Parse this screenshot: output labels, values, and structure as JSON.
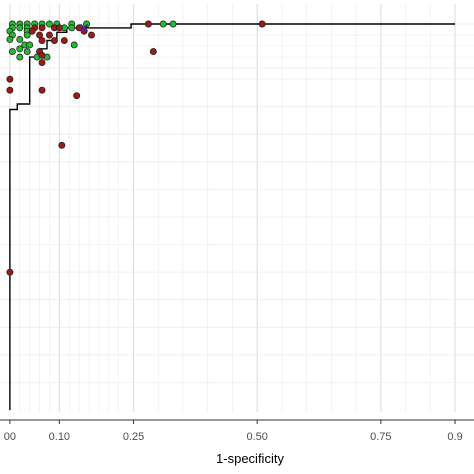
{
  "chart_data": {
    "type": "scatter",
    "xlabel": "1-specificity",
    "ylabel": "",
    "xlim": [
      0,
      0.9
    ],
    "ylim": [
      0.3,
      1.0
    ],
    "x_tick_labels": [
      "00",
      "0.10",
      "0.25",
      "0.50",
      "0.75",
      "0.9"
    ],
    "x_ticks": [
      0,
      0.1,
      0.25,
      0.5,
      0.75,
      0.9
    ],
    "x_minor_grid": [
      0.02,
      0.04,
      0.06,
      0.08,
      0.12,
      0.14,
      0.16,
      0.18,
      0.2,
      0.22,
      0.3,
      0.35,
      0.4,
      0.45,
      0.55,
      0.6,
      0.65,
      0.7,
      0.8,
      0.85
    ],
    "y_grid": [
      0.35,
      0.4,
      0.45,
      0.5,
      0.55,
      0.6,
      0.65,
      0.7,
      0.75,
      0.8,
      0.85,
      0.9,
      0.92,
      0.94,
      0.96,
      0.98,
      1.0
    ],
    "grid": true,
    "legend": "none",
    "colors": {
      "green": "#22bb33",
      "red": "#9b1b16",
      "star": "#4a2aa0",
      "curve": "#000000",
      "grid": "#ebebeb"
    },
    "roc_curve": [
      [
        0.0,
        0.3
      ],
      [
        0.0,
        0.845
      ],
      [
        0.015,
        0.845
      ],
      [
        0.015,
        0.855
      ],
      [
        0.04,
        0.855
      ],
      [
        0.04,
        0.94
      ],
      [
        0.06,
        0.94
      ],
      [
        0.06,
        0.955
      ],
      [
        0.075,
        0.955
      ],
      [
        0.075,
        0.97
      ],
      [
        0.095,
        0.97
      ],
      [
        0.095,
        0.985
      ],
      [
        0.115,
        0.985
      ],
      [
        0.115,
        0.993
      ],
      [
        0.245,
        0.993
      ],
      [
        0.245,
        1.0
      ],
      [
        0.9,
        1.0
      ]
    ],
    "series": [
      {
        "color": "green",
        "points": [
          [
            0.005,
            1.0
          ],
          [
            0.02,
            1.0
          ],
          [
            0.035,
            1.0
          ],
          [
            0.05,
            1.0
          ],
          [
            0.065,
            1.0
          ],
          [
            0.08,
            1.0
          ],
          [
            0.095,
            1.0
          ],
          [
            0.125,
            1.0
          ],
          [
            0.155,
            1.0
          ],
          [
            0.31,
            1.0
          ],
          [
            0.33,
            1.0
          ],
          [
            0.005,
            0.993
          ],
          [
            0.02,
            0.993
          ],
          [
            0.035,
            0.993
          ],
          [
            0.11,
            0.993
          ],
          [
            0.125,
            0.993
          ],
          [
            0.0,
            0.987
          ],
          [
            0.035,
            0.987
          ],
          [
            0.005,
            0.98
          ],
          [
            0.035,
            0.98
          ],
          [
            0.0,
            0.972
          ],
          [
            0.02,
            0.972
          ],
          [
            0.03,
            0.962
          ],
          [
            0.04,
            0.962
          ],
          [
            0.02,
            0.955
          ],
          [
            0.13,
            0.962
          ],
          [
            0.005,
            0.95
          ],
          [
            0.035,
            0.95
          ],
          [
            0.02,
            0.94
          ],
          [
            0.055,
            0.94
          ],
          [
            0.075,
            0.94
          ]
        ]
      },
      {
        "color": "red",
        "points": [
          [
            0.05,
            0.993
          ],
          [
            0.065,
            0.993
          ],
          [
            0.09,
            0.993
          ],
          [
            0.1,
            0.993
          ],
          [
            0.14,
            0.993
          ],
          [
            0.28,
            1.0
          ],
          [
            0.51,
            1.0
          ],
          [
            0.045,
            0.987
          ],
          [
            0.06,
            0.98
          ],
          [
            0.08,
            0.98
          ],
          [
            0.15,
            0.987
          ],
          [
            0.165,
            0.98
          ],
          [
            0.065,
            0.97
          ],
          [
            0.09,
            0.97
          ],
          [
            0.11,
            0.97
          ],
          [
            0.06,
            0.95
          ],
          [
            0.29,
            0.95
          ],
          [
            0.065,
            0.943
          ],
          [
            0.065,
            0.93
          ],
          [
            0.0,
            0.9
          ],
          [
            0.0,
            0.88
          ],
          [
            0.065,
            0.88
          ],
          [
            0.135,
            0.87
          ],
          [
            0.105,
            0.78
          ],
          [
            0.0,
            0.55
          ]
        ]
      }
    ],
    "optimal_point": {
      "x": 0.15,
      "y": 0.993,
      "marker": "x"
    }
  }
}
